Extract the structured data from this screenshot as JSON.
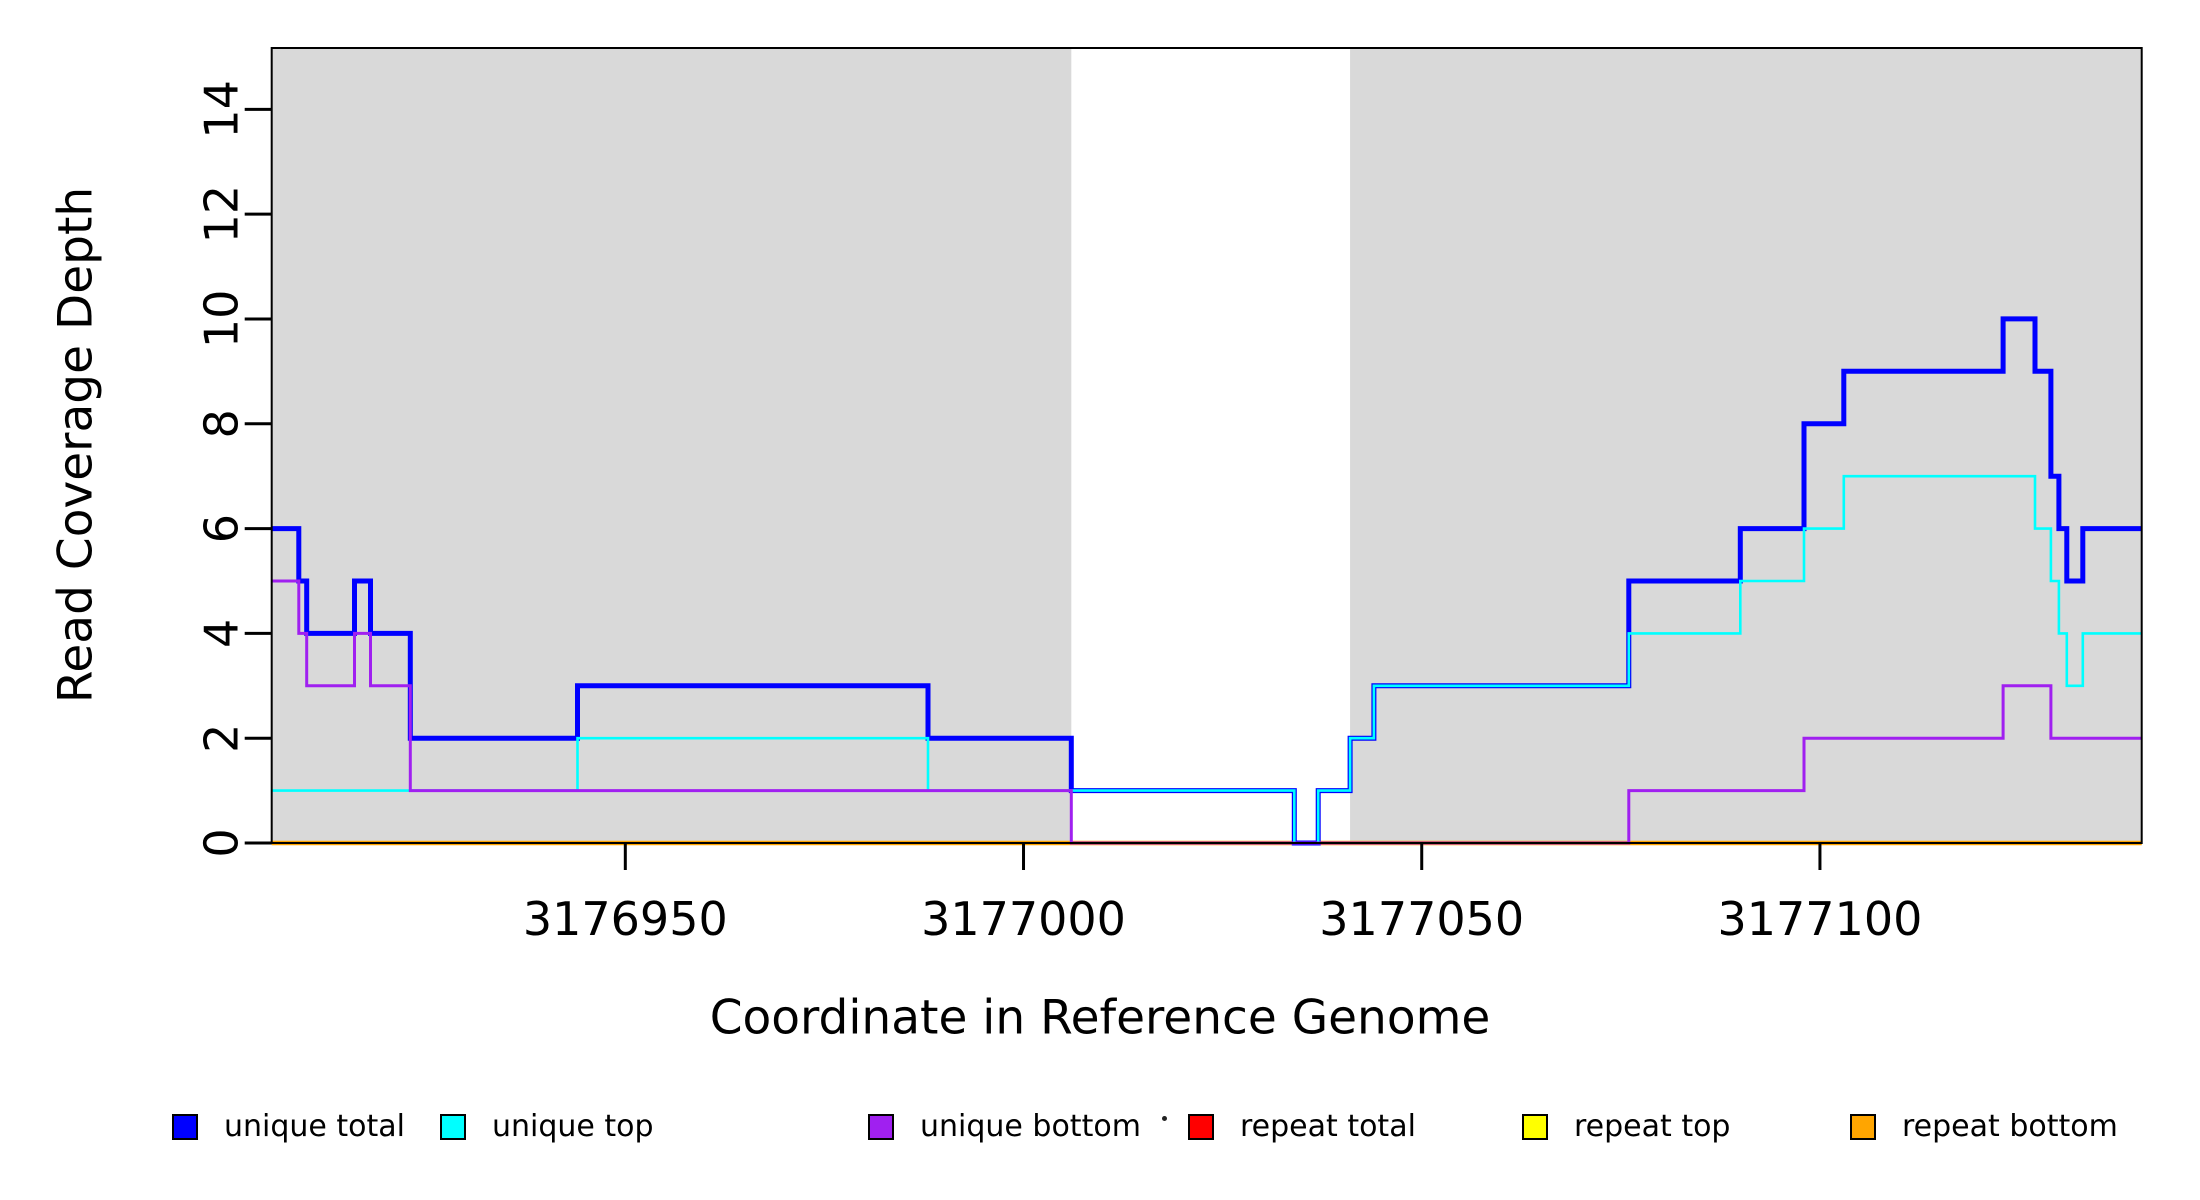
{
  "figure": {
    "x_title": "Coordinate in Reference Genome",
    "y_title": "Read Coverage Depth"
  },
  "chart_data": {
    "type": "line",
    "subtype": "step-coverage",
    "title": "",
    "xlabel": "Coordinate in Reference Genome",
    "ylabel": "Read Coverage Depth",
    "x_range": [
      3176905.6,
      3177140.4
    ],
    "y_range": [
      0,
      15.17
    ],
    "x_ticks": [
      3176950,
      3177000,
      3177050,
      3177100
    ],
    "y_ticks": [
      0,
      2,
      4,
      6,
      8,
      10,
      12,
      14
    ],
    "grid": false,
    "panel_background": "#FFFFFF",
    "shaded_regions": [
      {
        "x0": 3176905.6,
        "x1": 3177006,
        "color": "#D9D9D9"
      },
      {
        "x0": 3177041,
        "x1": 3177140.4,
        "color": "#D9D9D9"
      }
    ],
    "series": [
      {
        "name": "repeat total",
        "color": "#FF0000",
        "width": 2.5,
        "steps": [
          [
            3176905.6,
            0
          ]
        ]
      },
      {
        "name": "repeat top",
        "color": "#FFFF00",
        "width": 2.5,
        "steps": [
          [
            3176905.6,
            0
          ]
        ]
      },
      {
        "name": "repeat bottom",
        "color": "#FFA500",
        "width": 4.5,
        "steps": [
          [
            3176905.6,
            0
          ]
        ]
      },
      {
        "name": "unique total",
        "color": "#0000FF",
        "width": 5,
        "steps": [
          [
            3176905.6,
            6
          ],
          [
            3176909,
            5
          ],
          [
            3176910,
            4
          ],
          [
            3176916,
            5
          ],
          [
            3176918,
            4
          ],
          [
            3176923,
            2
          ],
          [
            3176944,
            3
          ],
          [
            3176988,
            2
          ],
          [
            3177006,
            1
          ],
          [
            3177034,
            0
          ],
          [
            3177037,
            1
          ],
          [
            3177041,
            2
          ],
          [
            3177044,
            3
          ],
          [
            3177076,
            5
          ],
          [
            3177090,
            6
          ],
          [
            3177098,
            8
          ],
          [
            3177103,
            9
          ],
          [
            3177123,
            10
          ],
          [
            3177127,
            9
          ],
          [
            3177129,
            7
          ],
          [
            3177130,
            6
          ],
          [
            3177131,
            5
          ],
          [
            3177133,
            6
          ]
        ]
      },
      {
        "name": "unique top",
        "color": "#00FFFF",
        "width": 2.6,
        "steps": [
          [
            3176905.6,
            1
          ],
          [
            3176944,
            2
          ],
          [
            3176988,
            1
          ],
          [
            3177034,
            0
          ],
          [
            3177037,
            1
          ],
          [
            3177041,
            2
          ],
          [
            3177044,
            3
          ],
          [
            3177076,
            4
          ],
          [
            3177090,
            5
          ],
          [
            3177098,
            6
          ],
          [
            3177103,
            7
          ],
          [
            3177127,
            6
          ],
          [
            3177129,
            5
          ],
          [
            3177130,
            4
          ],
          [
            3177131,
            3
          ],
          [
            3177133,
            4
          ]
        ]
      },
      {
        "name": "unique bottom",
        "color": "#A020F0",
        "width": 3,
        "steps": [
          [
            3176905.6,
            5
          ],
          [
            3176909,
            4
          ],
          [
            3176910,
            3
          ],
          [
            3176916,
            4
          ],
          [
            3176918,
            3
          ],
          [
            3176923,
            1
          ],
          [
            3177006,
            0
          ],
          [
            3177076,
            1
          ],
          [
            3177098,
            2
          ],
          [
            3177123,
            3
          ],
          [
            3177129,
            2
          ]
        ]
      }
    ],
    "legend": {
      "position": "bottom",
      "stray_dot": "·",
      "items": [
        {
          "label": "unique total",
          "color": "#0000FF"
        },
        {
          "label": "unique top",
          "color": "#00FFFF"
        },
        {
          "label": "unique bottom",
          "color": "#A020F0"
        },
        {
          "label": "repeat total",
          "color": "#FF0000"
        },
        {
          "label": "repeat top",
          "color": "#FFFF00"
        },
        {
          "label": "repeat bottom",
          "color": "#FFA500"
        }
      ]
    }
  }
}
